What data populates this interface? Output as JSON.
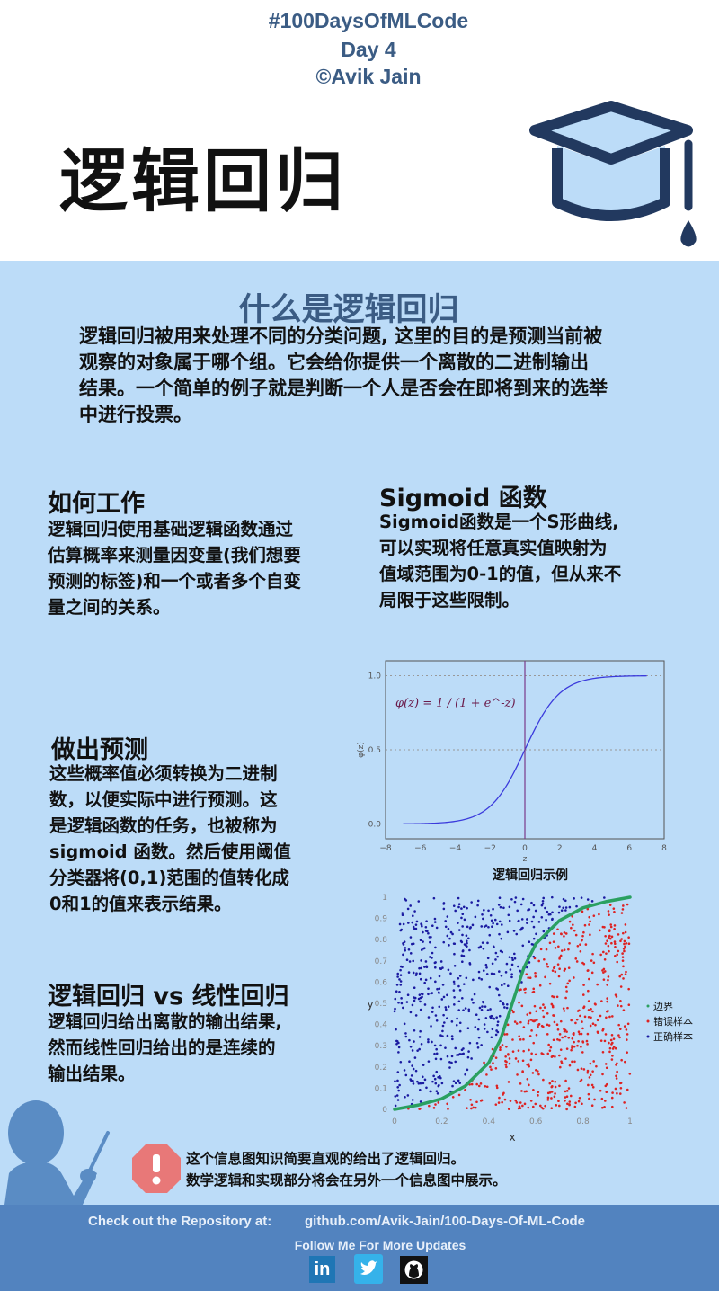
{
  "header": {
    "hashtag": "#100DaysOfMLCode",
    "day": "Day 4",
    "author": "©Avik Jain",
    "title": "逻辑回归",
    "icon": "graduation-cap-icon"
  },
  "what": {
    "title": "什么是逻辑回归",
    "text": [
      "逻辑回归被用来处理不同的分类问题, 这里的目的是预测当前被",
      "观察的对象属于哪个组。它会给你提供一个离散的二进制输出",
      "结果。一个简单的例子就是判断一个人是否会在即将到来的选举",
      "中进行投票。"
    ]
  },
  "how": {
    "title": "如何工作",
    "text": [
      "逻辑回归使用基础逻辑函数通过",
      "估算概率来测量因变量(我们想要",
      "预测的标签)和一个或者多个自变",
      "量之间的关系。"
    ]
  },
  "sigmoid": {
    "title": "Sigmoid 函数",
    "text": [
      "Sigmoid函数是一个S形曲线,",
      "可以实现将任意真实值映射为",
      "值域范围为0-1的值，但从来不",
      "局限于这些限制。"
    ]
  },
  "predict": {
    "title": "做出预测",
    "text": [
      "这些概率值必须转换为二进制",
      "数，以便实际中进行预测。这",
      "是逻辑函数的任务，也被称为",
      "sigmoid 函数。然后使用阈值",
      "分类器将(0,1)范围的值转化成",
      "0和1的值来表示结果。"
    ]
  },
  "vs": {
    "title": "逻辑回归 vs 线性回归",
    "text": [
      "逻辑回归给出离散的输出结果,",
      "然而线性回归给出的是连续的",
      "输出结果。"
    ]
  },
  "note": {
    "icon": "warning-octagon-icon",
    "lines": [
      "这个信息图知识简要直观的给出了逻辑回归。",
      "数学逻辑和实现部分将会在另外一个信息图中展示。"
    ]
  },
  "footer": {
    "repo_label": "Check out the Repository at:",
    "repo_url": "github.com/Avik-Jain/100-Days-Of-ML-Code",
    "follow": "Follow Me For More Updates",
    "icons": [
      "linkedin-icon",
      "twitter-icon",
      "github-icon"
    ]
  },
  "colors": {
    "header_text": "#3b5c84",
    "background": "#bcdcf8",
    "footer": "#5283bf",
    "warning": "#e87878",
    "curve": "#3b3bdc",
    "boundary": "#2aa060",
    "wrong": "#dd2222",
    "correct": "#1a1aa0"
  },
  "chart_data": [
    {
      "type": "line",
      "title": "",
      "formula_label": "φ(z) = 1 / (1 + e^-z)",
      "xlabel": "z",
      "ylabel": "φ(z)",
      "xlim": [
        -8,
        8
      ],
      "ylim": [
        -0.1,
        1.1
      ],
      "xticks": [
        "−8",
        "−6",
        "−4",
        "−2",
        "0",
        "2",
        "4",
        "6",
        "8"
      ],
      "yticks": [
        "0.0",
        "0.5",
        "1.0"
      ],
      "grid": "horizontal dotted at 0, 0.5, 1",
      "vline": 0,
      "x": [
        -7,
        -6,
        -5,
        -4,
        -3,
        -2,
        -1,
        0,
        1,
        2,
        3,
        4,
        5,
        6,
        7
      ],
      "y": [
        0.001,
        0.002,
        0.007,
        0.018,
        0.047,
        0.119,
        0.269,
        0.5,
        0.731,
        0.881,
        0.953,
        0.982,
        0.993,
        0.998,
        0.999
      ],
      "caption": "逻辑回归示例"
    },
    {
      "type": "scatter",
      "xlabel": "x",
      "ylabel": "y",
      "xlim": [
        0,
        1
      ],
      "ylim": [
        0,
        1
      ],
      "xticks": [
        "0",
        "0.2",
        "0.4",
        "0.6",
        "0.8",
        "1"
      ],
      "yticks": [
        "0",
        "0.1",
        "0.2",
        "0.3",
        "0.4",
        "0.5",
        "0.6",
        "0.7",
        "0.8",
        "0.9",
        "1"
      ],
      "legend_position": "right",
      "series": [
        {
          "name": "边界",
          "type": "line",
          "x": [
            0,
            0.1,
            0.2,
            0.3,
            0.4,
            0.45,
            0.5,
            0.55,
            0.6,
            0.7,
            0.8,
            0.9,
            1
          ],
          "y": [
            0,
            0.02,
            0.05,
            0.11,
            0.22,
            0.33,
            0.5,
            0.67,
            0.78,
            0.89,
            0.95,
            0.98,
            1
          ]
        },
        {
          "name": "错误样本",
          "side": "below boundary"
        },
        {
          "name": "正确样本",
          "side": "above boundary"
        }
      ]
    }
  ]
}
